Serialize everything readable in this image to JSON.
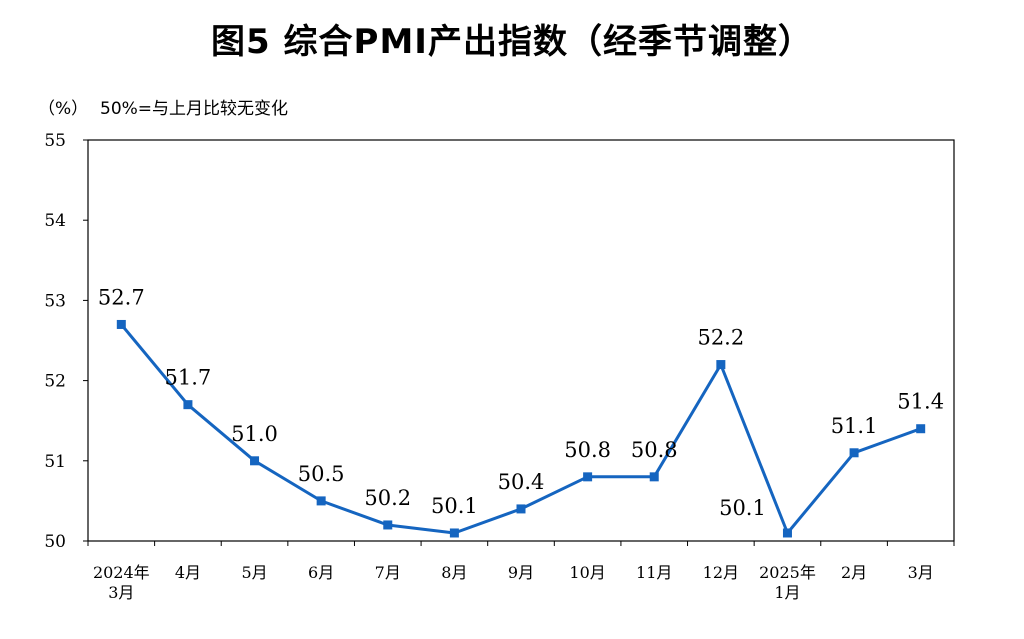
{
  "title": "图5  综合PMI产出指数（经季节调整）",
  "unit_label": "（%）",
  "note": "50%=与上月比较无变化",
  "colors": {
    "series": "#1565C0",
    "axis": "#000000"
  },
  "chart_data": {
    "type": "line",
    "categories": [
      [
        "2024年",
        "3月"
      ],
      [
        "4月"
      ],
      [
        "5月"
      ],
      [
        "6月"
      ],
      [
        "7月"
      ],
      [
        "8月"
      ],
      [
        "9月"
      ],
      [
        "10月"
      ],
      [
        "11月"
      ],
      [
        "12月"
      ],
      [
        "2025年",
        "1月"
      ],
      [
        "2月"
      ],
      [
        "3月"
      ]
    ],
    "series": [
      {
        "values": [
          52.7,
          51.7,
          51.0,
          50.5,
          50.2,
          50.1,
          50.4,
          50.8,
          50.8,
          52.2,
          50.1,
          51.1,
          51.4
        ]
      }
    ],
    "data_labels": [
      "52.7",
      "51.7",
      "51.0",
      "50.5",
      "50.2",
      "50.1",
      "50.4",
      "50.8",
      "50.8",
      "52.2",
      "50.1",
      "51.1",
      "51.4"
    ],
    "ylim": [
      50,
      55
    ],
    "yticks": [
      "50",
      "51",
      "52",
      "53",
      "54",
      "55"
    ],
    "grid": false,
    "legend": "none"
  }
}
